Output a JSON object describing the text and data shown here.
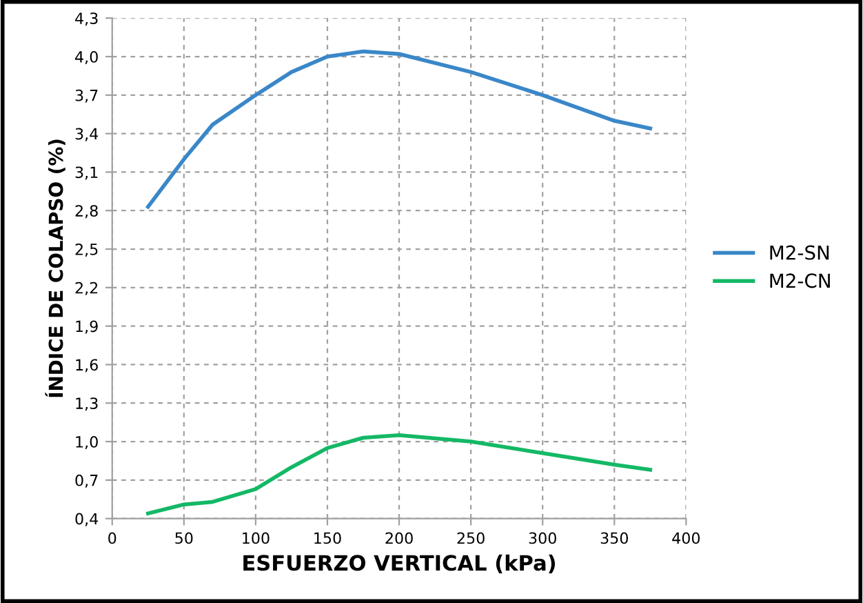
{
  "chart_data": {
    "type": "line",
    "xlabel": "ESFUERZO VERTICAL (kPa)",
    "ylabel": "ÍNDICE DE COLAPSO (%)",
    "xlim": [
      0,
      400
    ],
    "xticks": [
      0,
      50,
      100,
      150,
      200,
      250,
      300,
      350,
      400
    ],
    "ylim": [
      0.4,
      4.3
    ],
    "yticks": [
      {
        "value": 0.4,
        "label": "0,4"
      },
      {
        "value": 0.7,
        "label": "0,7"
      },
      {
        "value": 1.0,
        "label": "1,0"
      },
      {
        "value": 1.3,
        "label": "1,3"
      },
      {
        "value": 1.6,
        "label": "1,6"
      },
      {
        "value": 1.9,
        "label": "1,9"
      },
      {
        "value": 2.2,
        "label": "2,2"
      },
      {
        "value": 2.5,
        "label": "2,5"
      },
      {
        "value": 2.8,
        "label": "2,8"
      },
      {
        "value": 3.1,
        "label": "3,1"
      },
      {
        "value": 3.4,
        "label": "3,4"
      },
      {
        "value": 3.7,
        "label": "3,7"
      },
      {
        "value": 4.0,
        "label": "4,0"
      },
      {
        "value": 4.3,
        "label": "4,3"
      }
    ],
    "x": [
      25,
      50,
      70,
      100,
      125,
      150,
      175,
      200,
      250,
      300,
      350,
      375
    ],
    "series": [
      {
        "name": "M2-SN",
        "color": "#3a87c8",
        "values": [
          2.83,
          3.2,
          3.47,
          3.7,
          3.88,
          4.0,
          4.04,
          4.02,
          3.88,
          3.7,
          3.5,
          3.44
        ]
      },
      {
        "name": "M2-CN",
        "color": "#14b866",
        "values": [
          0.44,
          0.51,
          0.53,
          0.63,
          0.8,
          0.95,
          1.03,
          1.05,
          1.0,
          0.91,
          0.82,
          0.78
        ]
      }
    ],
    "grid": true,
    "legend": "right",
    "marker": "none",
    "line_style": "solid"
  }
}
